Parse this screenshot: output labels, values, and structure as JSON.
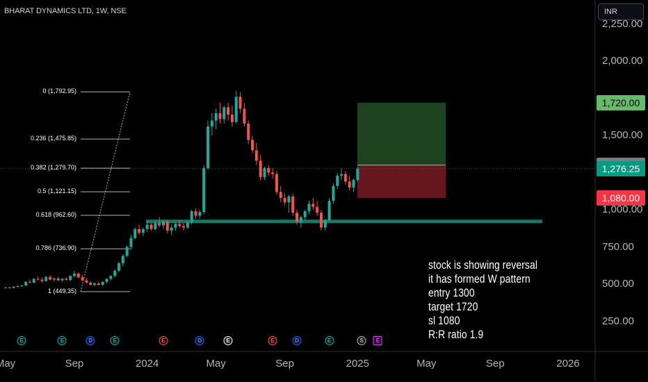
{
  "header": {
    "symbol": "BHARAT DYNAMICS LTD, 1W, NSE"
  },
  "currency": {
    "label": "INR"
  },
  "price_axis": {
    "labels": [
      {
        "text": "2,250.00",
        "value": 2250
      },
      {
        "text": "2,000.00",
        "value": 2000
      },
      {
        "text": "1,500.00",
        "value": 1500
      },
      {
        "text": "1,000.00",
        "value": 1000
      },
      {
        "text": "750.00",
        "value": 750
      },
      {
        "text": "500.00",
        "value": 500
      },
      {
        "text": "250.00",
        "value": 250
      }
    ],
    "tags": [
      {
        "text": "1,720.00",
        "value": 1720,
        "bg": "#66bb6a",
        "fg": "#000000"
      },
      {
        "text": "1,300.00",
        "value": 1300,
        "bg": "#787b86",
        "fg": "#ffffff"
      },
      {
        "text": "1,276.25",
        "value": 1276.25,
        "bg": "#089981",
        "fg": "#ffffff"
      },
      {
        "text": "1,080.00",
        "value": 1080,
        "bg": "#f23645",
        "fg": "#ffffff"
      }
    ]
  },
  "time_axis": {
    "labels": [
      {
        "text": "May",
        "week": 0
      },
      {
        "text": "Sep",
        "week": 17
      },
      {
        "text": "2024",
        "week": 35
      },
      {
        "text": "May",
        "week": 52
      },
      {
        "text": "Sep",
        "week": 69
      },
      {
        "text": "2025",
        "week": 87
      },
      {
        "text": "May",
        "week": 104
      },
      {
        "text": "Sep",
        "week": 121
      },
      {
        "text": "2026",
        "week": 139
      }
    ]
  },
  "fibonacci": {
    "levels": [
      {
        "label": "0 (1,792.95)",
        "price": 1792.95
      },
      {
        "label": "0.236 (1,475.85)",
        "price": 1475.85
      },
      {
        "label": "0.382 (1,279.70)",
        "price": 1279.7
      },
      {
        "label": "0.5 (1,121.15)",
        "price": 1121.15
      },
      {
        "label": "0.618 (962.60)",
        "price": 962.6
      },
      {
        "label": "0.786 (736.90)",
        "price": 736.9
      },
      {
        "label": "1 (449.35)",
        "price": 449.35
      }
    ]
  },
  "position": {
    "entry": 1300,
    "target": 1720,
    "stop": 1080
  },
  "support": {
    "price": 922
  },
  "note": {
    "lines": [
      "stock is showing reversal",
      "it has formed W pattern",
      "entry 1300",
      "target 1720",
      "sl 1080",
      "R:R ratio 1.9"
    ]
  },
  "events": [
    {
      "type": "E",
      "week": 4,
      "kind": "earnings"
    },
    {
      "type": "E",
      "week": 14,
      "kind": "earnings"
    },
    {
      "type": "D",
      "week": 21,
      "kind": "dividend"
    },
    {
      "type": "E",
      "week": 27,
      "kind": "earnings"
    },
    {
      "type": "E",
      "week": 39,
      "kind": "earnings-red"
    },
    {
      "type": "D",
      "week": 48,
      "kind": "dividend"
    },
    {
      "type": "E",
      "week": 55,
      "kind": "earnings-white"
    },
    {
      "type": "E",
      "week": 66,
      "kind": "earnings-red"
    },
    {
      "type": "D",
      "week": 72,
      "kind": "dividend"
    },
    {
      "type": "E",
      "week": 80,
      "kind": "earnings"
    },
    {
      "type": "S",
      "week": 88,
      "kind": "split"
    },
    {
      "type": "E",
      "week": 92,
      "kind": "earnings-magenta"
    }
  ],
  "colors": {
    "up": "#26a69a",
    "down": "#ef5350",
    "background": "#000000"
  },
  "chart_data": {
    "type": "candlestick",
    "title": "BHARAT DYNAMICS LTD, 1W, NSE",
    "ylim": [
      100,
      2300
    ],
    "x_unit": "weeks from May 2023",
    "candles": [
      [
        0,
        475,
        480,
        470,
        478
      ],
      [
        1,
        478,
        482,
        470,
        474
      ],
      [
        2,
        474,
        485,
        472,
        482
      ],
      [
        3,
        482,
        490,
        478,
        486
      ],
      [
        4,
        486,
        495,
        480,
        490
      ],
      [
        5,
        490,
        520,
        488,
        515
      ],
      [
        6,
        515,
        530,
        505,
        510
      ],
      [
        7,
        510,
        540,
        505,
        535
      ],
      [
        8,
        535,
        550,
        525,
        530
      ],
      [
        9,
        530,
        545,
        510,
        520
      ],
      [
        10,
        520,
        555,
        515,
        548
      ],
      [
        11,
        548,
        560,
        525,
        530
      ],
      [
        12,
        530,
        545,
        515,
        538
      ],
      [
        13,
        538,
        550,
        520,
        525
      ],
      [
        14,
        525,
        540,
        515,
        535
      ],
      [
        15,
        535,
        545,
        525,
        528
      ],
      [
        16,
        528,
        560,
        520,
        555
      ],
      [
        17,
        555,
        590,
        545,
        570
      ],
      [
        18,
        570,
        580,
        540,
        545
      ],
      [
        19,
        545,
        560,
        520,
        525
      ],
      [
        20,
        525,
        540,
        505,
        510
      ],
      [
        21,
        510,
        520,
        490,
        495
      ],
      [
        22,
        495,
        510,
        485,
        505
      ],
      [
        23,
        505,
        515,
        490,
        495
      ],
      [
        24,
        495,
        520,
        485,
        515
      ],
      [
        25,
        515,
        540,
        505,
        535
      ],
      [
        26,
        535,
        560,
        525,
        555
      ],
      [
        27,
        555,
        600,
        545,
        590
      ],
      [
        28,
        590,
        650,
        580,
        640
      ],
      [
        29,
        640,
        700,
        620,
        690
      ],
      [
        30,
        690,
        760,
        680,
        750
      ],
      [
        31,
        750,
        830,
        730,
        810
      ],
      [
        32,
        810,
        880,
        800,
        870
      ],
      [
        33,
        870,
        900,
        830,
        845
      ],
      [
        34,
        845,
        880,
        820,
        870
      ],
      [
        35,
        870,
        920,
        850,
        900
      ],
      [
        36,
        900,
        910,
        860,
        870
      ],
      [
        37,
        870,
        925,
        860,
        910
      ],
      [
        38,
        910,
        950,
        880,
        895
      ],
      [
        39,
        895,
        930,
        870,
        920
      ],
      [
        40,
        920,
        930,
        840,
        860
      ],
      [
        41,
        860,
        900,
        830,
        880
      ],
      [
        42,
        880,
        920,
        860,
        905
      ],
      [
        43,
        905,
        930,
        880,
        890
      ],
      [
        44,
        890,
        910,
        860,
        880
      ],
      [
        45,
        880,
        920,
        870,
        915
      ],
      [
        46,
        915,
        1000,
        900,
        990
      ],
      [
        47,
        990,
        1010,
        940,
        960
      ],
      [
        48,
        960,
        1000,
        940,
        985
      ],
      [
        49,
        985,
        1300,
        970,
        1280
      ],
      [
        50,
        1280,
        1600,
        1270,
        1560
      ],
      [
        51,
        1560,
        1650,
        1500,
        1600
      ],
      [
        52,
        1600,
        1680,
        1540,
        1650
      ],
      [
        53,
        1650,
        1720,
        1580,
        1610
      ],
      [
        54,
        1610,
        1700,
        1580,
        1690
      ],
      [
        55,
        1690,
        1720,
        1600,
        1640
      ],
      [
        56,
        1640,
        1700,
        1560,
        1590
      ],
      [
        57,
        1590,
        1800,
        1580,
        1760
      ],
      [
        58,
        1760,
        1790,
        1650,
        1680
      ],
      [
        59,
        1680,
        1720,
        1560,
        1580
      ],
      [
        60,
        1580,
        1600,
        1440,
        1470
      ],
      [
        61,
        1470,
        1500,
        1380,
        1400
      ],
      [
        62,
        1400,
        1450,
        1300,
        1330
      ],
      [
        63,
        1330,
        1370,
        1200,
        1220
      ],
      [
        64,
        1220,
        1290,
        1200,
        1280
      ],
      [
        65,
        1280,
        1300,
        1230,
        1250
      ],
      [
        66,
        1250,
        1280,
        1210,
        1240
      ],
      [
        67,
        1240,
        1260,
        1100,
        1120
      ],
      [
        68,
        1120,
        1160,
        1050,
        1080
      ],
      [
        69,
        1080,
        1110,
        1030,
        1050
      ],
      [
        70,
        1050,
        1100,
        980,
        1090
      ],
      [
        71,
        1090,
        1110,
        960,
        980
      ],
      [
        72,
        980,
        1000,
        900,
        920
      ],
      [
        73,
        920,
        960,
        880,
        950
      ],
      [
        74,
        950,
        1000,
        930,
        990
      ],
      [
        75,
        990,
        1060,
        970,
        1040
      ],
      [
        76,
        1040,
        1080,
        1000,
        1020
      ],
      [
        77,
        1020,
        1060,
        960,
        980
      ],
      [
        78,
        980,
        1000,
        860,
        880
      ],
      [
        79,
        880,
        940,
        860,
        930
      ],
      [
        80,
        930,
        1080,
        920,
        1060
      ],
      [
        81,
        1060,
        1180,
        1040,
        1160
      ],
      [
        82,
        1160,
        1250,
        1140,
        1230
      ],
      [
        83,
        1230,
        1280,
        1200,
        1240
      ],
      [
        84,
        1240,
        1260,
        1170,
        1190
      ],
      [
        85,
        1190,
        1230,
        1130,
        1150
      ],
      [
        86,
        1150,
        1210,
        1120,
        1200
      ],
      [
        87,
        1200,
        1290,
        1190,
        1276
      ]
    ]
  }
}
